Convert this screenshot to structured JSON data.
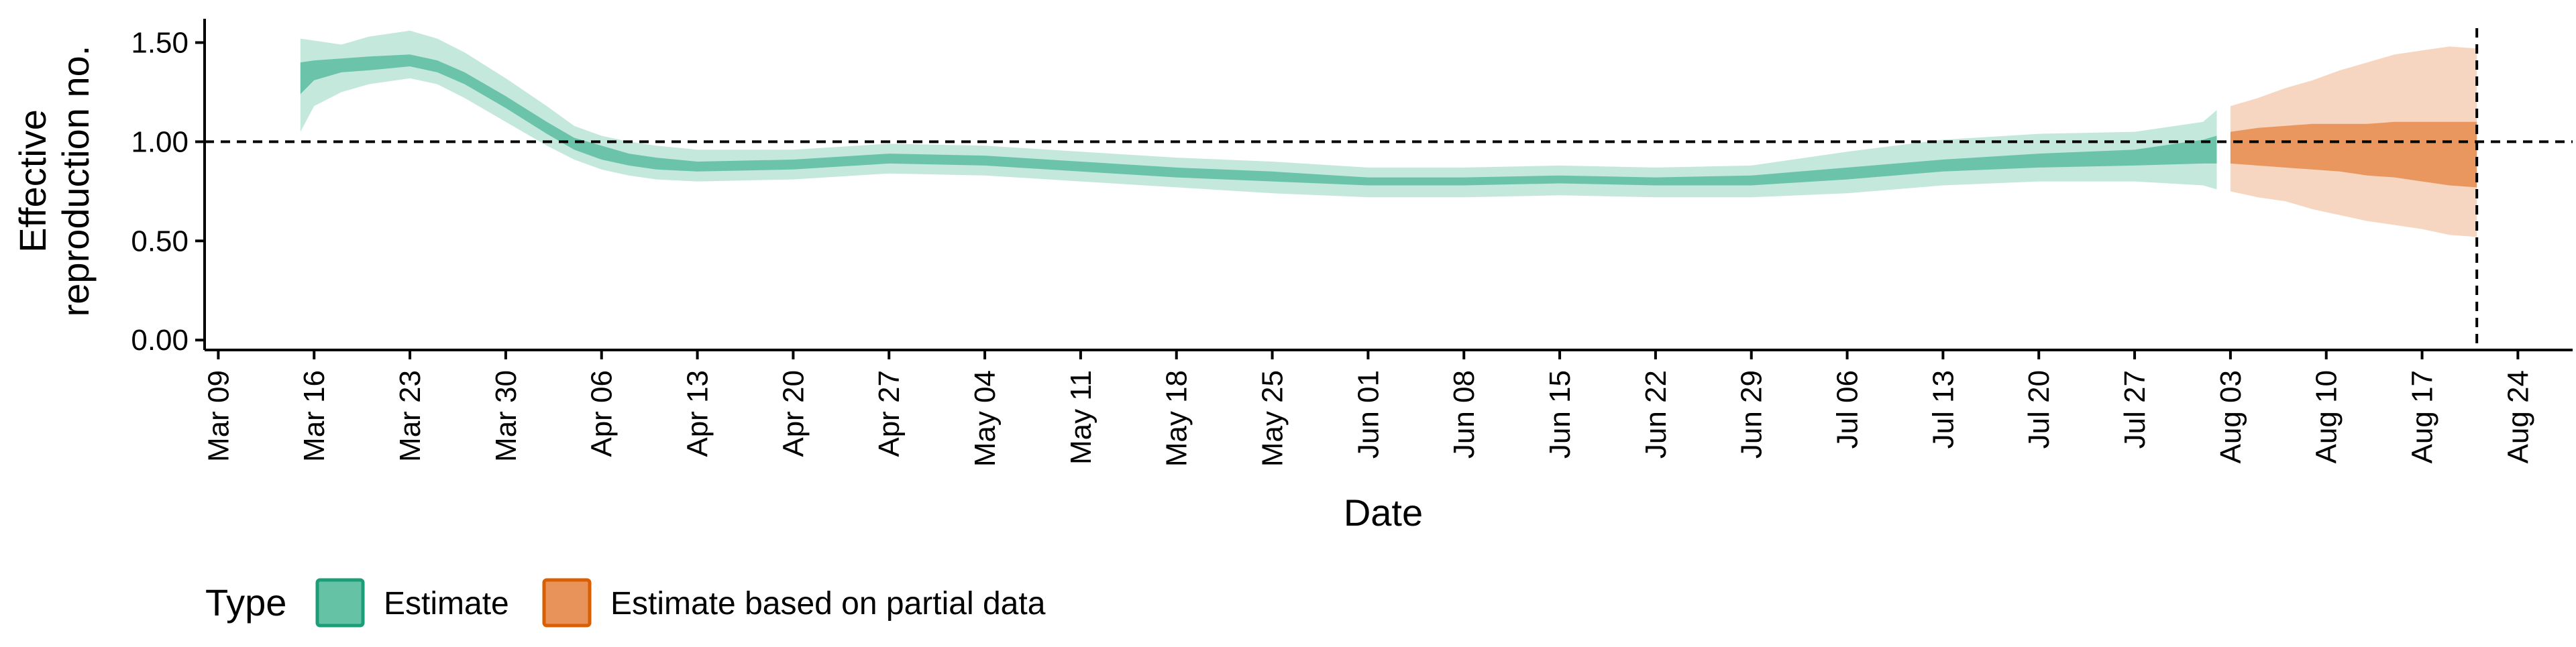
{
  "chart_data": {
    "type": "area",
    "xlabel": "Date",
    "ylabel": [
      "Effective",
      "reproduction no."
    ],
    "ylim": [
      -0.05,
      1.62
    ],
    "yticks": [
      0.0,
      0.5,
      1.0,
      1.5
    ],
    "ytick_labels": [
      "0.00",
      "0.50",
      "1.00",
      "1.50"
    ],
    "xlim": [
      "2020-03-08",
      "2020-08-28"
    ],
    "xticks": [
      "2020-03-09",
      "2020-03-16",
      "2020-03-23",
      "2020-03-30",
      "2020-04-06",
      "2020-04-13",
      "2020-04-20",
      "2020-04-27",
      "2020-05-04",
      "2020-05-11",
      "2020-05-18",
      "2020-05-25",
      "2020-06-01",
      "2020-06-08",
      "2020-06-15",
      "2020-06-22",
      "2020-06-29",
      "2020-07-06",
      "2020-07-13",
      "2020-07-20",
      "2020-07-27",
      "2020-08-03",
      "2020-08-10",
      "2020-08-17",
      "2020-08-24"
    ],
    "xtick_labels": [
      "Mar 09",
      "Mar 16",
      "Mar 23",
      "Mar 30",
      "Apr 06",
      "Apr 13",
      "Apr 20",
      "Apr 27",
      "May 04",
      "May 11",
      "May 18",
      "May 25",
      "Jun 01",
      "Jun 08",
      "Jun 15",
      "Jun 22",
      "Jun 29",
      "Jul 06",
      "Jul 13",
      "Jul 20",
      "Jul 27",
      "Aug 03",
      "Aug 10",
      "Aug 17",
      "Aug 24"
    ],
    "reference_hline": 1.0,
    "reference_vline": "2020-08-21",
    "legend": {
      "title": "Type",
      "position": "bottom-left",
      "entries": [
        {
          "label": "Estimate",
          "color": "#66c2a5",
          "border": "#1b9e77"
        },
        {
          "label": "Estimate based on partial data",
          "color": "#e8935a",
          "border": "#d95f02"
        }
      ]
    },
    "series": [
      {
        "name": "Estimate",
        "color": "#66c2a5",
        "x": [
          "2020-03-15",
          "2020-03-16",
          "2020-03-18",
          "2020-03-20",
          "2020-03-23",
          "2020-03-25",
          "2020-03-27",
          "2020-03-30",
          "2020-04-02",
          "2020-04-04",
          "2020-04-06",
          "2020-04-08",
          "2020-04-10",
          "2020-04-13",
          "2020-04-20",
          "2020-04-27",
          "2020-05-04",
          "2020-05-11",
          "2020-05-18",
          "2020-05-25",
          "2020-06-01",
          "2020-06-08",
          "2020-06-15",
          "2020-06-22",
          "2020-06-29",
          "2020-07-06",
          "2020-07-13",
          "2020-07-20",
          "2020-07-27",
          "2020-08-01",
          "2020-08-02"
        ],
        "lower_90": [
          1.05,
          1.18,
          1.25,
          1.29,
          1.32,
          1.29,
          1.22,
          1.1,
          0.98,
          0.91,
          0.86,
          0.83,
          0.81,
          0.8,
          0.81,
          0.84,
          0.83,
          0.8,
          0.77,
          0.74,
          0.72,
          0.72,
          0.73,
          0.72,
          0.72,
          0.74,
          0.78,
          0.8,
          0.8,
          0.78,
          0.76
        ],
        "lower_50": [
          1.24,
          1.31,
          1.35,
          1.36,
          1.38,
          1.35,
          1.29,
          1.17,
          1.04,
          0.96,
          0.91,
          0.88,
          0.86,
          0.85,
          0.86,
          0.89,
          0.88,
          0.85,
          0.82,
          0.8,
          0.78,
          0.78,
          0.79,
          0.78,
          0.78,
          0.81,
          0.85,
          0.87,
          0.88,
          0.89,
          0.89
        ],
        "upper_50": [
          1.4,
          1.41,
          1.42,
          1.43,
          1.44,
          1.41,
          1.35,
          1.23,
          1.1,
          1.02,
          0.98,
          0.94,
          0.92,
          0.9,
          0.91,
          0.94,
          0.93,
          0.9,
          0.87,
          0.85,
          0.82,
          0.82,
          0.83,
          0.82,
          0.83,
          0.87,
          0.91,
          0.94,
          0.96,
          1.01,
          1.03
        ],
        "upper_90": [
          1.52,
          1.51,
          1.49,
          1.53,
          1.56,
          1.52,
          1.45,
          1.32,
          1.18,
          1.08,
          1.03,
          1.0,
          0.98,
          0.96,
          0.96,
          0.99,
          0.98,
          0.95,
          0.92,
          0.9,
          0.87,
          0.87,
          0.88,
          0.87,
          0.88,
          0.95,
          1.01,
          1.04,
          1.05,
          1.1,
          1.16
        ]
      },
      {
        "name": "Estimate based on partial data",
        "color": "#e8935a",
        "x": [
          "2020-08-03",
          "2020-08-05",
          "2020-08-07",
          "2020-08-09",
          "2020-08-11",
          "2020-08-13",
          "2020-08-15",
          "2020-08-17",
          "2020-08-19",
          "2020-08-21"
        ],
        "lower_90": [
          0.75,
          0.72,
          0.7,
          0.66,
          0.63,
          0.6,
          0.58,
          0.56,
          0.53,
          0.52
        ],
        "lower_50": [
          0.89,
          0.88,
          0.87,
          0.86,
          0.85,
          0.83,
          0.82,
          0.8,
          0.78,
          0.77
        ],
        "upper_50": [
          1.05,
          1.07,
          1.08,
          1.09,
          1.09,
          1.09,
          1.1,
          1.1,
          1.1,
          1.1
        ],
        "upper_90": [
          1.18,
          1.22,
          1.27,
          1.31,
          1.36,
          1.4,
          1.44,
          1.46,
          1.48,
          1.47
        ]
      }
    ]
  }
}
